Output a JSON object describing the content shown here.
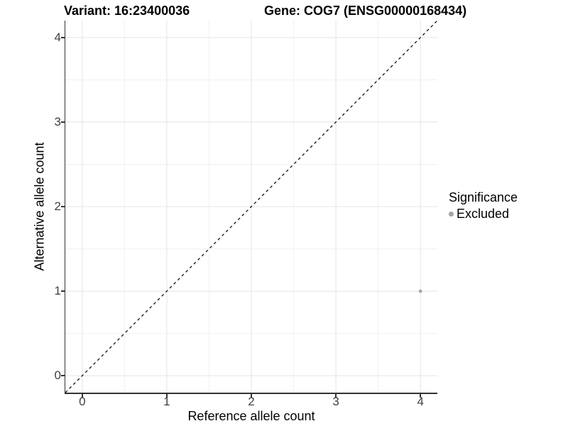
{
  "header": {
    "variant_title": "Variant: 16:23400036",
    "gene_title": "Gene: COG7 (ENSG00000168434)"
  },
  "axes": {
    "x": {
      "label": "Reference allele count",
      "tick_labels": [
        "0",
        "1",
        "2",
        "3",
        "4"
      ]
    },
    "y": {
      "label": "Alternative allele count",
      "tick_labels": [
        "0",
        "1",
        "2",
        "3",
        "4"
      ]
    }
  },
  "legend": {
    "title": "Significance",
    "items": [
      {
        "label": "Excluded",
        "color": "#a3a3a3"
      }
    ]
  },
  "chart_data": {
    "type": "scatter",
    "title": "Variant: 16:23400036 | Gene: COG7 (ENSG00000168434)",
    "xlabel": "Reference allele count",
    "ylabel": "Alternative allele count",
    "xlim": [
      -0.2,
      4.2
    ],
    "ylim": [
      -0.2,
      4.2
    ],
    "x_ticks": [
      0,
      1,
      2,
      3,
      4
    ],
    "y_ticks": [
      0,
      1,
      2,
      3,
      4
    ],
    "minor_ticks": [
      0.5,
      1.5,
      2.5,
      3.5
    ],
    "grid": "on",
    "legend_position": "right",
    "series": [
      {
        "name": "Excluded",
        "color": "#a3a3a3",
        "marker_radius": 2.3,
        "points": [
          [
            4,
            1
          ]
        ]
      }
    ],
    "reference_line": {
      "equation": "y = x",
      "style": "dashed",
      "color": "#000000"
    }
  }
}
